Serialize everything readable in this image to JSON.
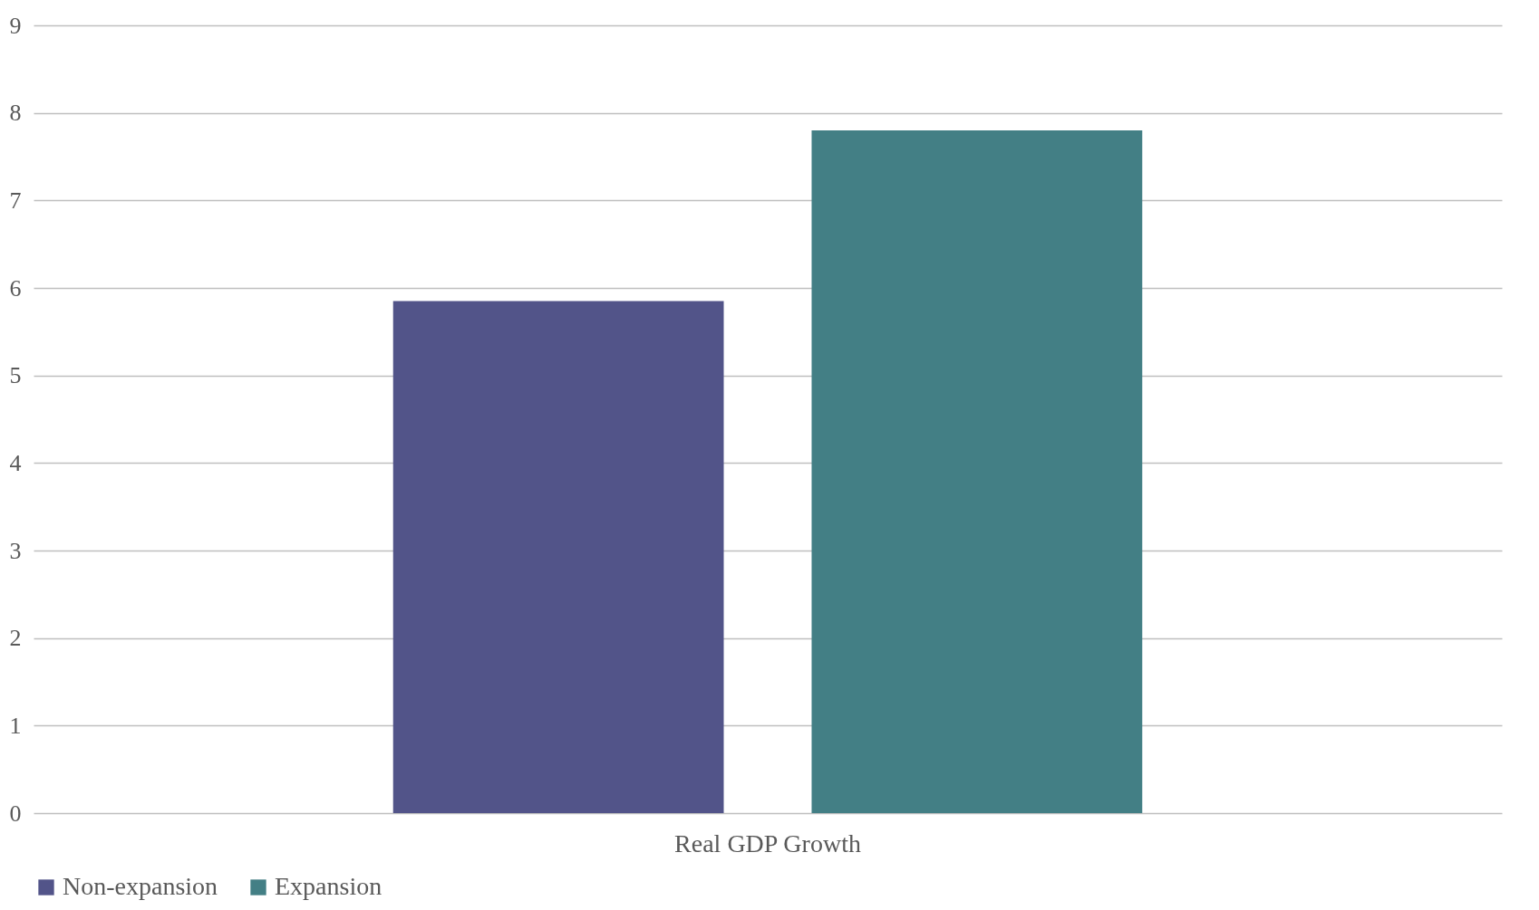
{
  "chart_data": {
    "type": "bar",
    "categories": [
      "Real GDP Growth"
    ],
    "series": [
      {
        "name": "Non-expansion",
        "color": "#525489",
        "values": [
          5.85
        ]
      },
      {
        "name": "Expansion",
        "color": "#437f85",
        "values": [
          7.8
        ]
      }
    ],
    "ylim": [
      0,
      9
    ],
    "yticks": [
      0,
      1,
      2,
      3,
      4,
      5,
      6,
      7,
      8,
      9
    ],
    "grid": "y",
    "legend": "bottom"
  }
}
